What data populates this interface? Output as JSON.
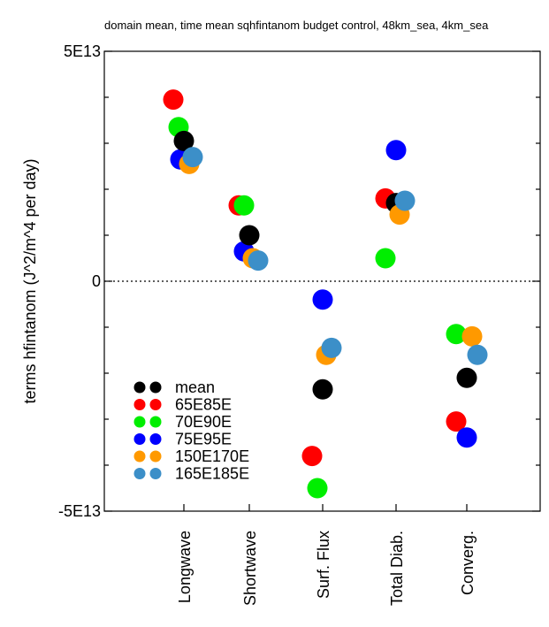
{
  "chart_data": {
    "type": "scatter",
    "title": "domain mean, time mean sqhfintanom budget control, 48km_sea, 4km_sea",
    "ylabel": "terms hfintanom (J^2/m^4 per day)",
    "xlabel": "",
    "ylim": [
      -50000000000000.0,
      50000000000000.0
    ],
    "yticks": [
      {
        "value": 50000000000000.0,
        "label": "5E13"
      },
      {
        "value": 0,
        "label": "0"
      },
      {
        "value": -50000000000000.0,
        "label": "-5E13"
      }
    ],
    "zero_line": "dotted",
    "legend_position": "bottom-left",
    "categories": [
      "Longwave",
      "Shortwave",
      "Surf. Flux",
      "Total Diab.",
      "Converg."
    ],
    "series": [
      {
        "name": "mean",
        "color": "#000000",
        "values": [
          30500000000000.0,
          10000000000000.0,
          -23500000000000.0,
          17000000000000.0,
          -21000000000000.0
        ]
      },
      {
        "name": "65E85E",
        "color": "#ff0000",
        "values": [
          39500000000000.0,
          16500000000000.0,
          -38000000000000.0,
          18000000000000.0,
          -30500000000000.0
        ]
      },
      {
        "name": "70E90E",
        "color": "#00ee00",
        "values": [
          33500000000000.0,
          16500000000000.0,
          -45000000000000.0,
          5000000000000.0,
          -11500000000000.0
        ]
      },
      {
        "name": "75E95E",
        "color": "#0000ff",
        "values": [
          26500000000000.0,
          6500000000000.0,
          -4000000000000.0,
          28500000000000.0,
          -34000000000000.0
        ]
      },
      {
        "name": "150E170E",
        "color": "#ff9900",
        "values": [
          25500000000000.0,
          5000000000000.0,
          -16000000000000.0,
          14500000000000.0,
          -12000000000000.0
        ]
      },
      {
        "name": "165E185E",
        "color": "#3c8fc8",
        "values": [
          27000000000000.0,
          4500000000000.0,
          -14500000000000.0,
          17500000000000.0,
          -16000000000000.0
        ]
      }
    ]
  }
}
